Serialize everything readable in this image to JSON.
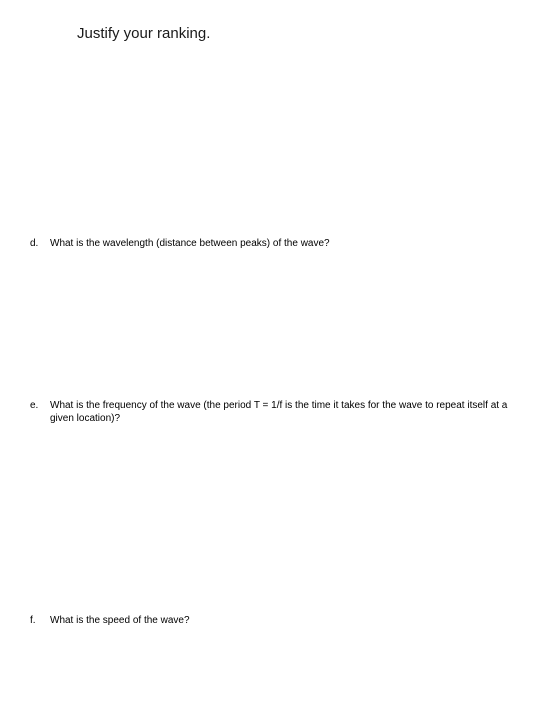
{
  "heading": {
    "text": "Justify your ranking.",
    "fontsize": 15,
    "color": "#1a1a1a"
  },
  "questions": [
    {
      "label": "d.",
      "text": "What is the wavelength (distance between peaks) of the wave?"
    },
    {
      "label": "e.",
      "text": "What is the frequency of the wave (the period T = 1/f is the time it takes for the wave to repeat itself at a given location)?"
    },
    {
      "label": "f.",
      "text": "What is the speed of the wave?"
    }
  ],
  "page": {
    "background_color": "#ffffff",
    "text_color": "#000000",
    "body_fontsize": 10,
    "heading_fontsize": 15
  }
}
